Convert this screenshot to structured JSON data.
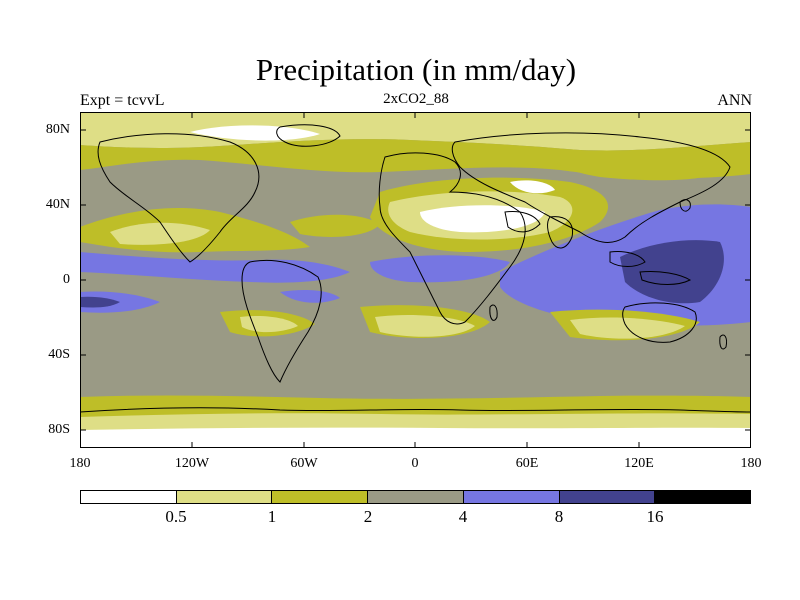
{
  "header": {
    "title": "Precipitation (in mm/day)",
    "subtitle": "2xCO2_88",
    "left_label": "Expt = tcvvL",
    "right_label": "ANN"
  },
  "axes": {
    "lat_labels": [
      "80N",
      "40N",
      "0",
      "40S",
      "80S"
    ],
    "lon_labels": [
      "180",
      "120W",
      "60W",
      "0",
      "60E",
      "120E",
      "180"
    ]
  },
  "legend": {
    "colors": [
      "#ffffff",
      "#dede86",
      "#bebe28",
      "#9a9a85",
      "#7676e2",
      "#42428e",
      "#000000"
    ],
    "labels": [
      "0.5",
      "1",
      "2",
      "4",
      "8",
      "16"
    ]
  },
  "colors": {
    "c0": "#ffffff",
    "c1": "#dede86",
    "c2": "#bebe28",
    "c3": "#9a9a85",
    "c4": "#7676e2",
    "c5": "#42428e"
  }
}
